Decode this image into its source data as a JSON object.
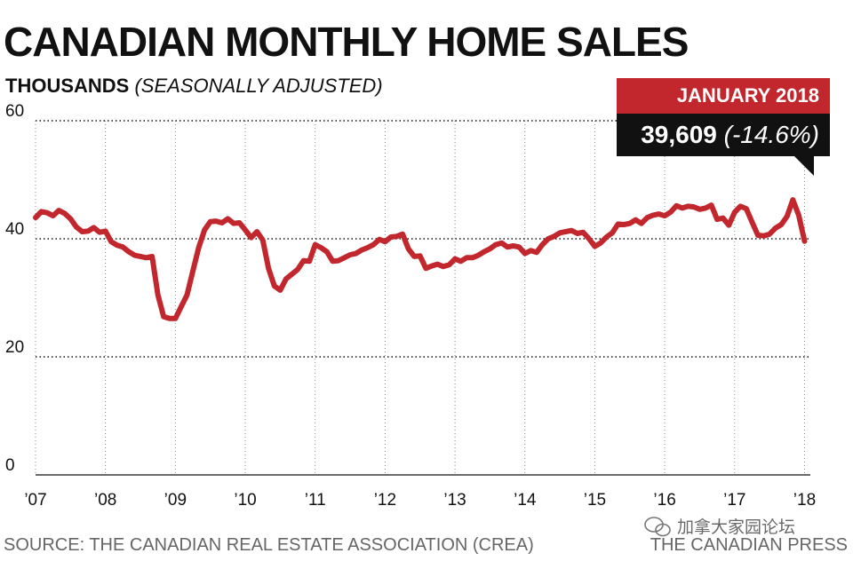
{
  "header": {
    "title": "CANADIAN MONTHLY HOME SALES",
    "units": "THOUSANDS",
    "note": "(SEASONALLY ADJUSTED)"
  },
  "callout": {
    "period": "JANUARY 2018",
    "value": "39,609",
    "change": "(-14.6%)"
  },
  "footer": {
    "source": "SOURCE: THE CANADIAN REAL ESTATE ASSOCIATION (CREA)",
    "credit": "THE CANADIAN PRESS",
    "watermark": "加拿大家园论坛"
  },
  "colors": {
    "line": "#c1272d",
    "callout_top": "#c1272d",
    "callout_bottom": "#111111"
  },
  "chart_data": {
    "type": "line",
    "title": "CANADIAN MONTHLY HOME SALES",
    "xlabel": "",
    "ylabel": "THOUSANDS (SEASONALLY ADJUSTED)",
    "ylim": [
      0,
      60
    ],
    "yticks": [
      0,
      20,
      40,
      60
    ],
    "xlim": [
      2007.0,
      2018.083
    ],
    "xticks": [
      {
        "x": 2007,
        "label": "’07"
      },
      {
        "x": 2008,
        "label": "’08"
      },
      {
        "x": 2009,
        "label": "’09"
      },
      {
        "x": 2010,
        "label": "’10"
      },
      {
        "x": 2011,
        "label": "’11"
      },
      {
        "x": 2012,
        "label": "’12"
      },
      {
        "x": 2013,
        "label": "’13"
      },
      {
        "x": 2014,
        "label": "’14"
      },
      {
        "x": 2015,
        "label": "’15"
      },
      {
        "x": 2016,
        "label": "’16"
      },
      {
        "x": 2017,
        "label": "’17"
      },
      {
        "x": 2018,
        "label": "’18"
      }
    ],
    "grid": "horizontal dotted",
    "series": [
      {
        "x": [
          2007.0,
          2007.083,
          2007.167,
          2007.25,
          2007.333,
          2007.417,
          2007.5,
          2007.583,
          2007.667,
          2007.75,
          2007.833,
          2007.917,
          2008.0,
          2008.083,
          2008.167,
          2008.25,
          2008.333,
          2008.417,
          2008.5,
          2008.583,
          2008.667,
          2008.75,
          2008.833,
          2008.917,
          2009.0,
          2009.083,
          2009.167,
          2009.25,
          2009.333,
          2009.417,
          2009.5,
          2009.583,
          2009.667,
          2009.75,
          2009.833,
          2009.917,
          2010.0,
          2010.083,
          2010.167,
          2010.25,
          2010.333,
          2010.417,
          2010.5,
          2010.583,
          2010.667,
          2010.75,
          2010.833,
          2010.917,
          2011.0,
          2011.083,
          2011.167,
          2011.25,
          2011.333,
          2011.417,
          2011.5,
          2011.583,
          2011.667,
          2011.75,
          2011.833,
          2011.917,
          2012.0,
          2012.083,
          2012.167,
          2012.25,
          2012.333,
          2012.417,
          2012.5,
          2012.583,
          2012.667,
          2012.75,
          2012.833,
          2012.917,
          2013.0,
          2013.083,
          2013.167,
          2013.25,
          2013.333,
          2013.417,
          2013.5,
          2013.583,
          2013.667,
          2013.75,
          2013.833,
          2013.917,
          2014.0,
          2014.083,
          2014.167,
          2014.25,
          2014.333,
          2014.417,
          2014.5,
          2014.583,
          2014.667,
          2014.75,
          2014.833,
          2014.917,
          2015.0,
          2015.083,
          2015.167,
          2015.25,
          2015.333,
          2015.417,
          2015.5,
          2015.583,
          2015.667,
          2015.75,
          2015.833,
          2015.917,
          2016.0,
          2016.083,
          2016.167,
          2016.25,
          2016.333,
          2016.417,
          2016.5,
          2016.583,
          2016.667,
          2016.75,
          2016.833,
          2016.917,
          2017.0,
          2017.083,
          2017.167,
          2017.25,
          2017.333,
          2017.417,
          2017.5,
          2017.583,
          2017.667,
          2017.75,
          2017.833,
          2017.917,
          2018.0
        ],
        "values": [
          43.6,
          44.6,
          44.4,
          43.9,
          44.8,
          44.3,
          43.4,
          42.0,
          41.2,
          41.3,
          41.9,
          41.1,
          41.3,
          39.5,
          38.9,
          38.6,
          37.8,
          37.2,
          37.0,
          36.8,
          37.0,
          30.5,
          26.8,
          26.5,
          26.5,
          28.5,
          30.5,
          34.5,
          38.5,
          41.5,
          42.9,
          43.0,
          42.7,
          43.4,
          42.6,
          42.7,
          41.5,
          40.2,
          41.2,
          39.8,
          35.0,
          32.0,
          31.3,
          33.2,
          34.0,
          34.8,
          36.3,
          36.2,
          39.0,
          38.5,
          37.8,
          36.2,
          36.3,
          36.8,
          37.3,
          37.5,
          38.1,
          38.5,
          39.0,
          39.9,
          39.5,
          40.3,
          40.4,
          40.8,
          38.3,
          37.0,
          37.1,
          35.0,
          35.4,
          35.7,
          35.3,
          35.6,
          36.6,
          36.2,
          36.8,
          36.8,
          37.2,
          37.8,
          38.3,
          39.0,
          39.3,
          38.6,
          38.8,
          38.6,
          37.5,
          38.0,
          37.7,
          39.0,
          40.0,
          40.4,
          41.0,
          41.2,
          41.4,
          40.9,
          41.1,
          40.0,
          38.7,
          39.3,
          40.3,
          41.0,
          42.5,
          42.4,
          42.6,
          43.2,
          42.6,
          43.6,
          44.0,
          44.2,
          43.9,
          44.5,
          45.6,
          45.2,
          45.5,
          45.4,
          45.0,
          45.2,
          45.7,
          43.3,
          43.5,
          42.3,
          44.5,
          45.5,
          45.1,
          42.8,
          40.6,
          40.5,
          40.8,
          41.8,
          42.4,
          43.8,
          46.6,
          44.0,
          39.6
        ]
      }
    ],
    "annotations": [
      {
        "x": 2018.0,
        "label": "JANUARY 2018",
        "value_label": "39,609",
        "change_label": "(-14.6%)"
      }
    ]
  }
}
